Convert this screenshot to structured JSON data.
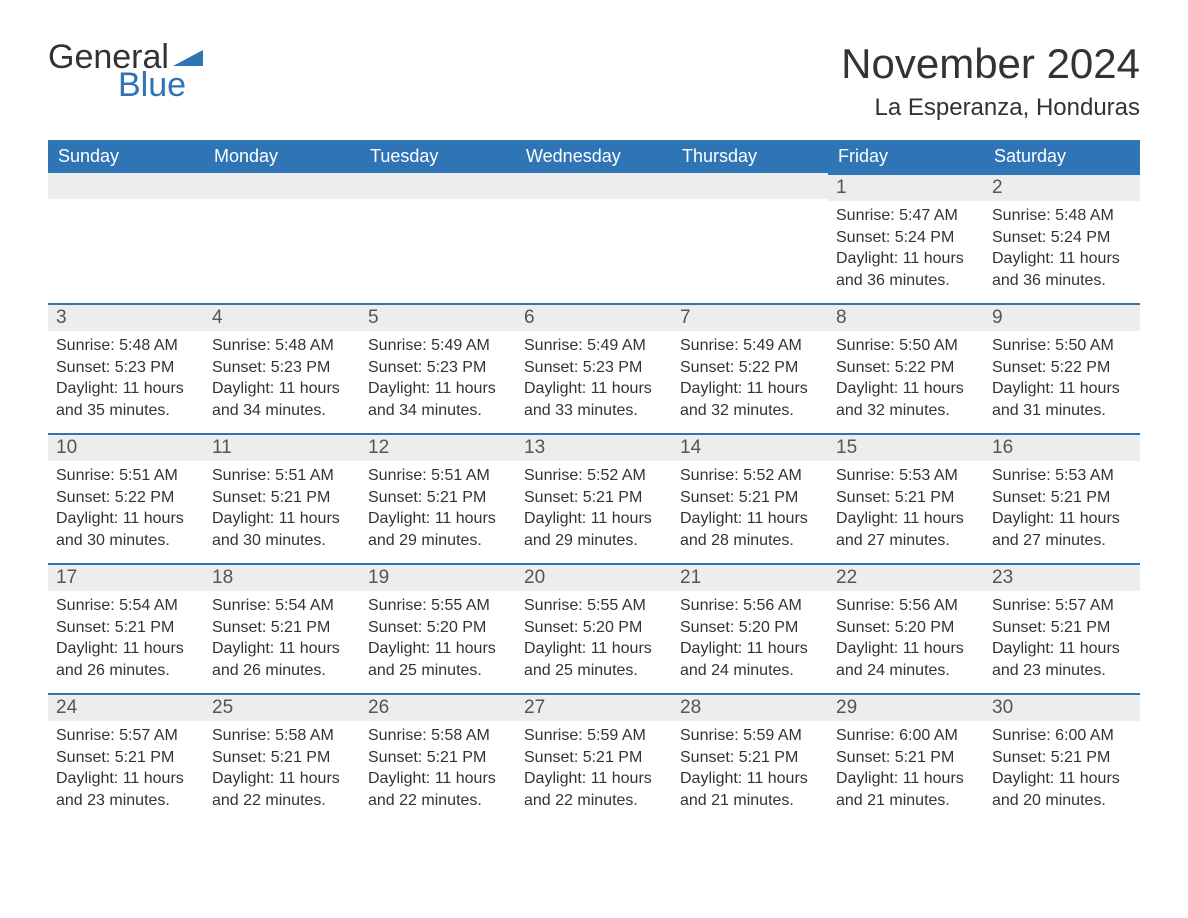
{
  "brand": {
    "text_general": "General",
    "text_blue": "Blue",
    "accent_color": "#2f74b5"
  },
  "title": {
    "month_year": "November 2024",
    "location": "La Esperanza, Honduras"
  },
  "colors": {
    "header_bg": "#2f74b5",
    "header_text": "#ffffff",
    "daynum_bg": "#ededed",
    "page_bg": "#ffffff",
    "text": "#333333"
  },
  "weekdays": [
    "Sunday",
    "Monday",
    "Tuesday",
    "Wednesday",
    "Thursday",
    "Friday",
    "Saturday"
  ],
  "labels": {
    "sunrise": "Sunrise:",
    "sunset": "Sunset:",
    "daylight": "Daylight:"
  },
  "weeks": [
    [
      null,
      null,
      null,
      null,
      null,
      {
        "n": "1",
        "sunrise": "5:47 AM",
        "sunset": "5:24 PM",
        "daylight": "11 hours and 36 minutes."
      },
      {
        "n": "2",
        "sunrise": "5:48 AM",
        "sunset": "5:24 PM",
        "daylight": "11 hours and 36 minutes."
      }
    ],
    [
      {
        "n": "3",
        "sunrise": "5:48 AM",
        "sunset": "5:23 PM",
        "daylight": "11 hours and 35 minutes."
      },
      {
        "n": "4",
        "sunrise": "5:48 AM",
        "sunset": "5:23 PM",
        "daylight": "11 hours and 34 minutes."
      },
      {
        "n": "5",
        "sunrise": "5:49 AM",
        "sunset": "5:23 PM",
        "daylight": "11 hours and 34 minutes."
      },
      {
        "n": "6",
        "sunrise": "5:49 AM",
        "sunset": "5:23 PM",
        "daylight": "11 hours and 33 minutes."
      },
      {
        "n": "7",
        "sunrise": "5:49 AM",
        "sunset": "5:22 PM",
        "daylight": "11 hours and 32 minutes."
      },
      {
        "n": "8",
        "sunrise": "5:50 AM",
        "sunset": "5:22 PM",
        "daylight": "11 hours and 32 minutes."
      },
      {
        "n": "9",
        "sunrise": "5:50 AM",
        "sunset": "5:22 PM",
        "daylight": "11 hours and 31 minutes."
      }
    ],
    [
      {
        "n": "10",
        "sunrise": "5:51 AM",
        "sunset": "5:22 PM",
        "daylight": "11 hours and 30 minutes."
      },
      {
        "n": "11",
        "sunrise": "5:51 AM",
        "sunset": "5:21 PM",
        "daylight": "11 hours and 30 minutes."
      },
      {
        "n": "12",
        "sunrise": "5:51 AM",
        "sunset": "5:21 PM",
        "daylight": "11 hours and 29 minutes."
      },
      {
        "n": "13",
        "sunrise": "5:52 AM",
        "sunset": "5:21 PM",
        "daylight": "11 hours and 29 minutes."
      },
      {
        "n": "14",
        "sunrise": "5:52 AM",
        "sunset": "5:21 PM",
        "daylight": "11 hours and 28 minutes."
      },
      {
        "n": "15",
        "sunrise": "5:53 AM",
        "sunset": "5:21 PM",
        "daylight": "11 hours and 27 minutes."
      },
      {
        "n": "16",
        "sunrise": "5:53 AM",
        "sunset": "5:21 PM",
        "daylight": "11 hours and 27 minutes."
      }
    ],
    [
      {
        "n": "17",
        "sunrise": "5:54 AM",
        "sunset": "5:21 PM",
        "daylight": "11 hours and 26 minutes."
      },
      {
        "n": "18",
        "sunrise": "5:54 AM",
        "sunset": "5:21 PM",
        "daylight": "11 hours and 26 minutes."
      },
      {
        "n": "19",
        "sunrise": "5:55 AM",
        "sunset": "5:20 PM",
        "daylight": "11 hours and 25 minutes."
      },
      {
        "n": "20",
        "sunrise": "5:55 AM",
        "sunset": "5:20 PM",
        "daylight": "11 hours and 25 minutes."
      },
      {
        "n": "21",
        "sunrise": "5:56 AM",
        "sunset": "5:20 PM",
        "daylight": "11 hours and 24 minutes."
      },
      {
        "n": "22",
        "sunrise": "5:56 AM",
        "sunset": "5:20 PM",
        "daylight": "11 hours and 24 minutes."
      },
      {
        "n": "23",
        "sunrise": "5:57 AM",
        "sunset": "5:21 PM",
        "daylight": "11 hours and 23 minutes."
      }
    ],
    [
      {
        "n": "24",
        "sunrise": "5:57 AM",
        "sunset": "5:21 PM",
        "daylight": "11 hours and 23 minutes."
      },
      {
        "n": "25",
        "sunrise": "5:58 AM",
        "sunset": "5:21 PM",
        "daylight": "11 hours and 22 minutes."
      },
      {
        "n": "26",
        "sunrise": "5:58 AM",
        "sunset": "5:21 PM",
        "daylight": "11 hours and 22 minutes."
      },
      {
        "n": "27",
        "sunrise": "5:59 AM",
        "sunset": "5:21 PM",
        "daylight": "11 hours and 22 minutes."
      },
      {
        "n": "28",
        "sunrise": "5:59 AM",
        "sunset": "5:21 PM",
        "daylight": "11 hours and 21 minutes."
      },
      {
        "n": "29",
        "sunrise": "6:00 AM",
        "sunset": "5:21 PM",
        "daylight": "11 hours and 21 minutes."
      },
      {
        "n": "30",
        "sunrise": "6:00 AM",
        "sunset": "5:21 PM",
        "daylight": "11 hours and 20 minutes."
      }
    ]
  ]
}
